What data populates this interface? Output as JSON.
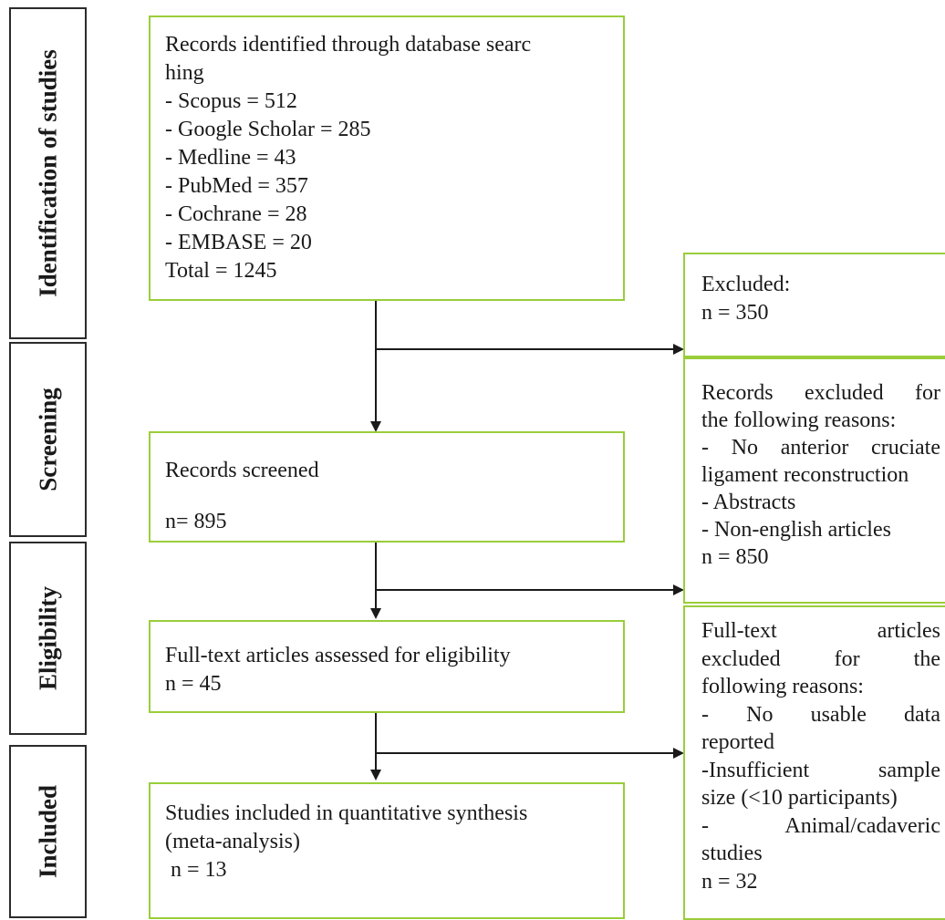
{
  "stages": [
    {
      "key": "identification",
      "label": "Identification of studies"
    },
    {
      "key": "screening",
      "label": "Screening"
    },
    {
      "key": "eligibility",
      "label": "Eligibility"
    },
    {
      "key": "included",
      "label": "Included"
    }
  ],
  "boxes": {
    "identified": {
      "lines": [
        "Records identified through database searc",
        "hing",
        "- Scopus = 512",
        "- Google Scholar = 285",
        "- Medline = 43",
        "- PubMed = 357",
        "- Cochrane = 28",
        "- EMBASE = 20",
        "Total = 1245"
      ]
    },
    "excluded_initial": {
      "title": "Excluded:",
      "count": "n = 350"
    },
    "screened": {
      "title": "Records screened",
      "count": "n= 895"
    },
    "excluded_screen": {
      "lines": [
        "Records excluded for",
        "the following reasons:",
        "- No anterior cruciate",
        "ligament reconstruction",
        "- Abstracts",
        "- Non-english articles",
        "n = 850"
      ]
    },
    "fulltext": {
      "title": "Full-text articles assessed for eligibility",
      "count": "n = 45"
    },
    "excluded_fulltext": {
      "lines": [
        "Full-text articles",
        "excluded for the",
        "following reasons:",
        "- No usable data",
        "reported",
        "-Insufficient sample",
        "size (<10 participants)",
        "- Animal/cadaveric",
        "studies",
        "n = 32"
      ]
    },
    "included": {
      "lines": [
        "Studies included in quantitative synthesis",
        "(meta-analysis)",
        " n = 13"
      ]
    }
  },
  "colors": {
    "box_border": "#9acd3a",
    "stage_border": "#2b2b2b",
    "arrow": "#1a1a1a"
  }
}
